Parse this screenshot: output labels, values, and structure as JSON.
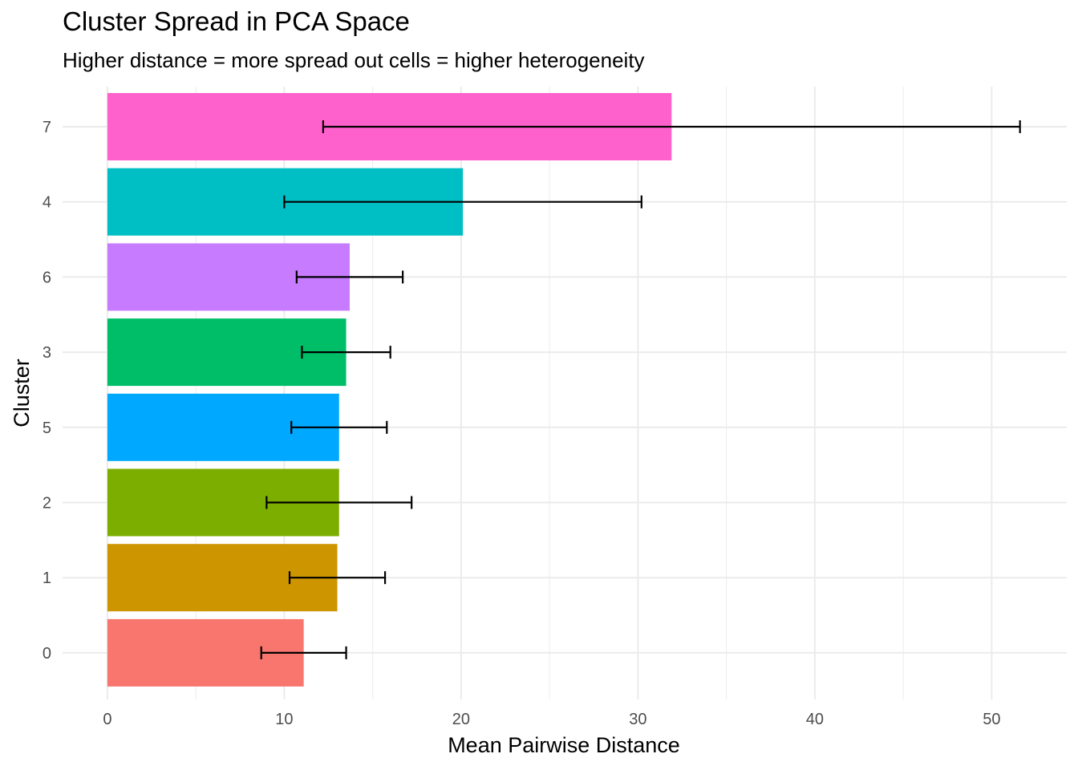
{
  "chart_data": {
    "type": "bar",
    "orientation": "horizontal",
    "title": "Cluster Spread in PCA Space",
    "subtitle": "Higher distance = more spread out cells = higher heterogeneity",
    "xlabel": "Mean Pairwise Distance",
    "ylabel": "Cluster",
    "xlim": [
      0,
      54
    ],
    "x_ticks": [
      0,
      10,
      20,
      30,
      40,
      50
    ],
    "x_tick_labels": [
      "0",
      "10",
      "20",
      "30",
      "40",
      "50"
    ],
    "grid": true,
    "legend": "none",
    "bars": [
      {
        "cluster": "7",
        "value": 31.9,
        "err_low": 12.2,
        "err_high": 51.6,
        "color": "#FF61CC"
      },
      {
        "cluster": "4",
        "value": 20.1,
        "err_low": 10.0,
        "err_high": 30.2,
        "color": "#00BFC4"
      },
      {
        "cluster": "6",
        "value": 13.7,
        "err_low": 10.7,
        "err_high": 16.7,
        "color": "#C77CFF"
      },
      {
        "cluster": "3",
        "value": 13.5,
        "err_low": 11.0,
        "err_high": 16.0,
        "color": "#00BE67"
      },
      {
        "cluster": "5",
        "value": 13.1,
        "err_low": 10.4,
        "err_high": 15.8,
        "color": "#00A9FF"
      },
      {
        "cluster": "2",
        "value": 13.1,
        "err_low": 9.0,
        "err_high": 17.2,
        "color": "#7CAE00"
      },
      {
        "cluster": "1",
        "value": 13.0,
        "err_low": 10.3,
        "err_high": 15.7,
        "color": "#CD9600"
      },
      {
        "cluster": "0",
        "value": 11.1,
        "err_low": 8.7,
        "err_high": 13.5,
        "color": "#F8766D"
      }
    ]
  }
}
